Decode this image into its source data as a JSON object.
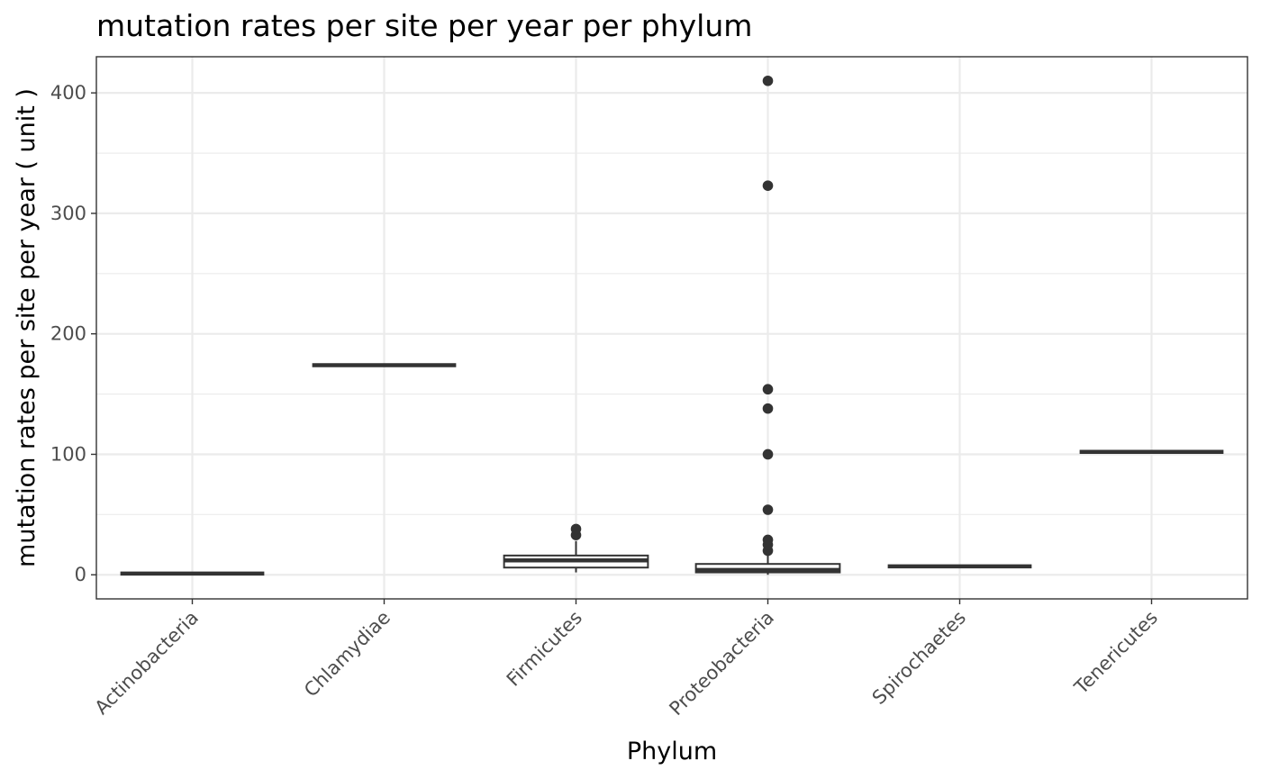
{
  "chart_data": {
    "type": "boxplot",
    "title": "mutation rates per site per year per phylum",
    "xlabel": "Phylum",
    "ylabel": "mutation rates per site per year ( unit )",
    "ylim": [
      -20,
      430
    ],
    "y_ticks": [
      0,
      100,
      200,
      300,
      400
    ],
    "y_tick_labels": [
      "0",
      "100",
      "200",
      "300",
      "400"
    ],
    "grid": true,
    "colors": {
      "box_line": "#333333",
      "box_fill": "#ffffff",
      "grid": "#ebebeb",
      "tick_text": "#4d4d4d"
    },
    "categories": [
      "Actinobacteria",
      "Chlamydiae",
      "Firmicutes",
      "Proteobacteria",
      "Spirochaetes",
      "Tenericutes"
    ],
    "boxes": [
      {
        "category": "Actinobacteria",
        "lower_whisker": 1,
        "q1": 1,
        "median": 1,
        "q3": 1,
        "upper_whisker": 1,
        "outliers": []
      },
      {
        "category": "Chlamydiae",
        "lower_whisker": 174,
        "q1": 174,
        "median": 174,
        "q3": 174,
        "upper_whisker": 174,
        "outliers": []
      },
      {
        "category": "Firmicutes",
        "lower_whisker": 2,
        "q1": 6,
        "median": 12,
        "q3": 16,
        "upper_whisker": 28,
        "outliers": [
          33,
          38
        ]
      },
      {
        "category": "Proteobacteria",
        "lower_whisker": 0,
        "q1": 2,
        "median": 4,
        "q3": 9,
        "upper_whisker": 17,
        "outliers": [
          20,
          25,
          29,
          54,
          100,
          138,
          154,
          323,
          410
        ]
      },
      {
        "category": "Spirochaetes",
        "lower_whisker": 7,
        "q1": 7,
        "median": 7,
        "q3": 7,
        "upper_whisker": 7,
        "outliers": []
      },
      {
        "category": "Tenericutes",
        "lower_whisker": 102,
        "q1": 102,
        "median": 102,
        "q3": 102,
        "upper_whisker": 102,
        "outliers": []
      }
    ]
  }
}
